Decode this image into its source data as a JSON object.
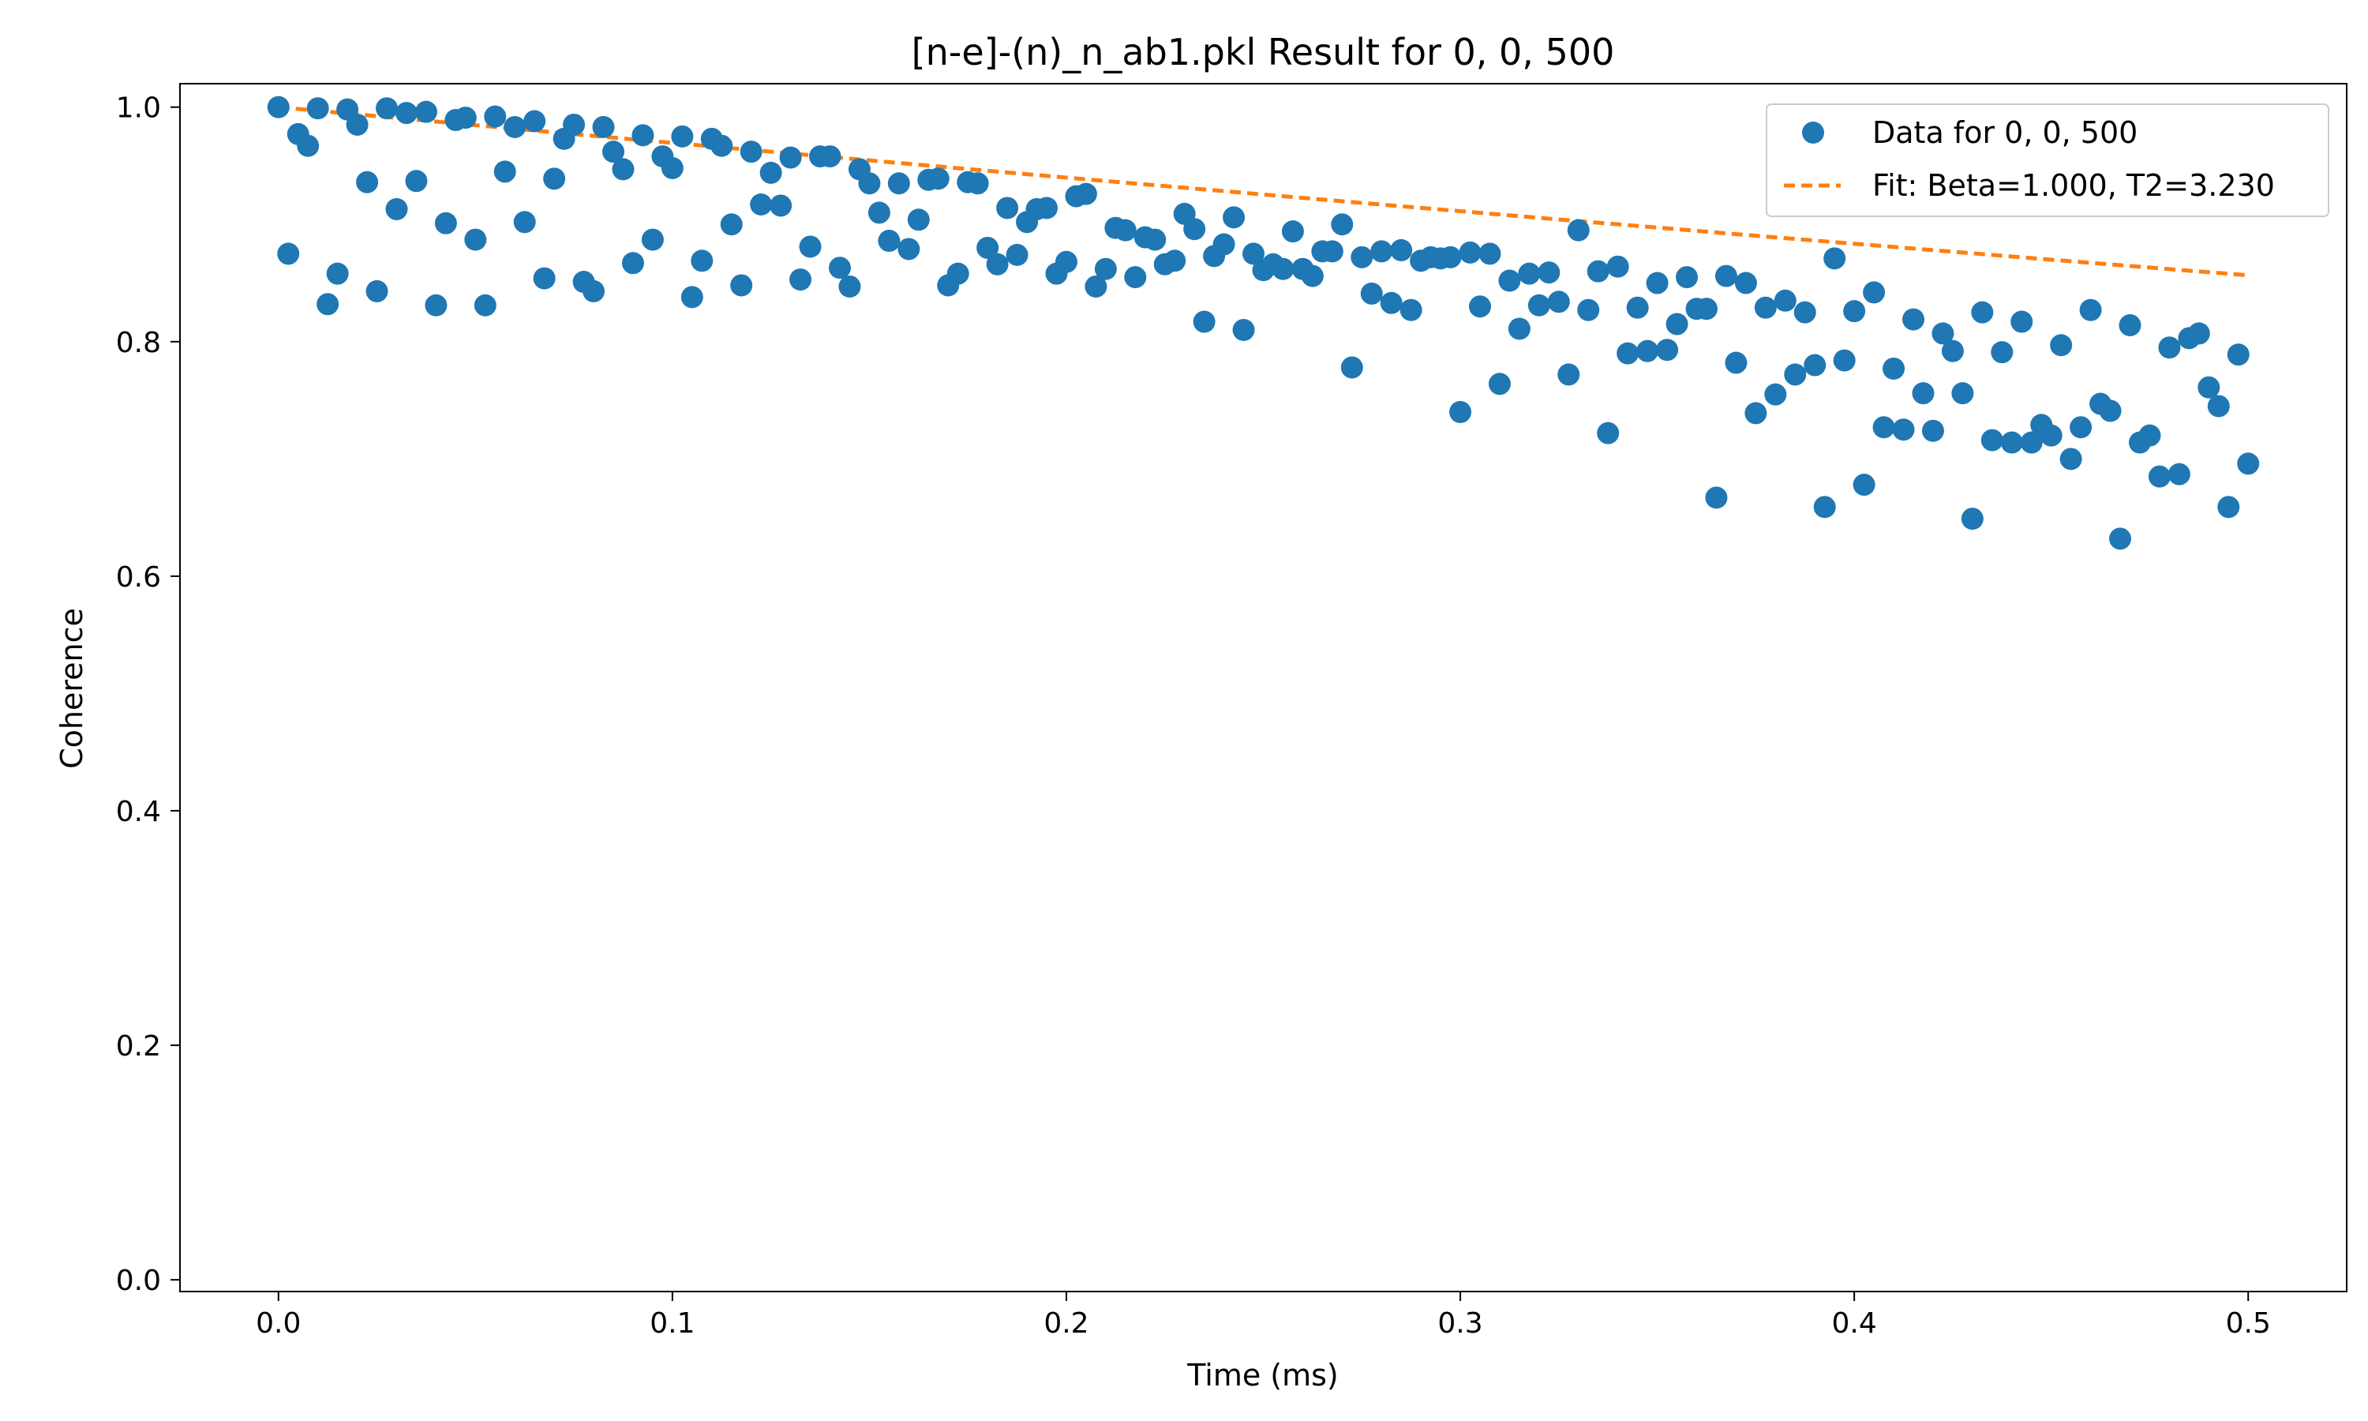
{
  "chart_data": {
    "type": "scatter",
    "title": "[n-e]-(n)_n_ab1.pkl Result for 0, 0, 500",
    "xlabel": "Time (ms)",
    "ylabel": "Coherence",
    "xlim": [
      -0.025,
      0.525
    ],
    "ylim": [
      -0.01,
      1.02
    ],
    "xticks": [
      0.0,
      0.1,
      0.2,
      0.3,
      0.4,
      0.5
    ],
    "xtick_labels": [
      "0.0",
      "0.1",
      "0.2",
      "0.3",
      "0.4",
      "0.5"
    ],
    "yticks": [
      0.0,
      0.2,
      0.4,
      0.6,
      0.8,
      1.0
    ],
    "ytick_labels": [
      "0.0",
      "0.2",
      "0.4",
      "0.6",
      "0.8",
      "1.0"
    ],
    "grid": false,
    "legend_position": "upper right",
    "series": [
      {
        "name": "Data for 0, 0, 500",
        "kind": "scatter",
        "color": "#1f77b4",
        "points": [
          [
            0.0,
            1.0
          ],
          [
            0.0025,
            0.875
          ],
          [
            0.005,
            0.977
          ],
          [
            0.0075,
            0.967
          ],
          [
            0.01,
            0.999
          ],
          [
            0.0125,
            0.832
          ],
          [
            0.015,
            0.858
          ],
          [
            0.0175,
            0.998
          ],
          [
            0.02,
            0.985
          ],
          [
            0.0225,
            0.936
          ],
          [
            0.025,
            0.843
          ],
          [
            0.0275,
            0.999
          ],
          [
            0.03,
            0.913
          ],
          [
            0.0325,
            0.995
          ],
          [
            0.035,
            0.937
          ],
          [
            0.0375,
            0.996
          ],
          [
            0.04,
            0.831
          ],
          [
            0.0425,
            0.901
          ],
          [
            0.045,
            0.989
          ],
          [
            0.0475,
            0.991
          ],
          [
            0.05,
            0.887
          ],
          [
            0.0525,
            0.831
          ],
          [
            0.055,
            0.992
          ],
          [
            0.0575,
            0.945
          ],
          [
            0.06,
            0.983
          ],
          [
            0.0625,
            0.902
          ],
          [
            0.065,
            0.988
          ],
          [
            0.0675,
            0.854
          ],
          [
            0.07,
            0.939
          ],
          [
            0.0725,
            0.973
          ],
          [
            0.075,
            0.985
          ],
          [
            0.0775,
            0.851
          ],
          [
            0.08,
            0.843
          ],
          [
            0.0825,
            0.983
          ],
          [
            0.085,
            0.962
          ],
          [
            0.0875,
            0.947
          ],
          [
            0.09,
            0.867
          ],
          [
            0.0925,
            0.976
          ],
          [
            0.095,
            0.887
          ],
          [
            0.0975,
            0.958
          ],
          [
            0.1,
            0.948
          ],
          [
            0.1025,
            0.975
          ],
          [
            0.105,
            0.838
          ],
          [
            0.1075,
            0.869
          ],
          [
            0.11,
            0.973
          ],
          [
            0.1125,
            0.967
          ],
          [
            0.115,
            0.9
          ],
          [
            0.1175,
            0.848
          ],
          [
            0.12,
            0.962
          ],
          [
            0.1225,
            0.917
          ],
          [
            0.125,
            0.944
          ],
          [
            0.1275,
            0.916
          ],
          [
            0.13,
            0.957
          ],
          [
            0.1325,
            0.853
          ],
          [
            0.135,
            0.881
          ],
          [
            0.1375,
            0.958
          ],
          [
            0.14,
            0.958
          ],
          [
            0.1425,
            0.863
          ],
          [
            0.145,
            0.847
          ],
          [
            0.1475,
            0.947
          ],
          [
            0.15,
            0.935
          ],
          [
            0.1525,
            0.91
          ],
          [
            0.155,
            0.886
          ],
          [
            0.1575,
            0.935
          ],
          [
            0.16,
            0.879
          ],
          [
            0.1625,
            0.904
          ],
          [
            0.165,
            0.938
          ],
          [
            0.1675,
            0.939
          ],
          [
            0.17,
            0.848
          ],
          [
            0.1725,
            0.858
          ],
          [
            0.175,
            0.936
          ],
          [
            0.1775,
            0.935
          ],
          [
            0.18,
            0.88
          ],
          [
            0.1825,
            0.866
          ],
          [
            0.185,
            0.914
          ],
          [
            0.1875,
            0.874
          ],
          [
            0.19,
            0.902
          ],
          [
            0.1925,
            0.913
          ],
          [
            0.195,
            0.914
          ],
          [
            0.1975,
            0.858
          ],
          [
            0.2,
            0.868
          ],
          [
            0.2025,
            0.924
          ],
          [
            0.205,
            0.926
          ],
          [
            0.2075,
            0.847
          ],
          [
            0.21,
            0.862
          ],
          [
            0.2125,
            0.897
          ],
          [
            0.215,
            0.895
          ],
          [
            0.2175,
            0.855
          ],
          [
            0.22,
            0.889
          ],
          [
            0.2225,
            0.887
          ],
          [
            0.225,
            0.866
          ],
          [
            0.2275,
            0.869
          ],
          [
            0.23,
            0.909
          ],
          [
            0.2325,
            0.896
          ],
          [
            0.235,
            0.817
          ],
          [
            0.2375,
            0.873
          ],
          [
            0.24,
            0.883
          ],
          [
            0.2425,
            0.906
          ],
          [
            0.245,
            0.81
          ],
          [
            0.2475,
            0.875
          ],
          [
            0.25,
            0.861
          ],
          [
            0.2525,
            0.866
          ],
          [
            0.255,
            0.862
          ],
          [
            0.2575,
            0.894
          ],
          [
            0.26,
            0.862
          ],
          [
            0.2625,
            0.856
          ],
          [
            0.265,
            0.877
          ],
          [
            0.2675,
            0.877
          ],
          [
            0.27,
            0.9
          ],
          [
            0.2725,
            0.778
          ],
          [
            0.275,
            0.872
          ],
          [
            0.2775,
            0.841
          ],
          [
            0.28,
            0.877
          ],
          [
            0.2825,
            0.833
          ],
          [
            0.285,
            0.878
          ],
          [
            0.2875,
            0.827
          ],
          [
            0.29,
            0.869
          ],
          [
            0.2925,
            0.872
          ],
          [
            0.295,
            0.871
          ],
          [
            0.2975,
            0.872
          ],
          [
            0.3,
            0.74
          ],
          [
            0.3025,
            0.876
          ],
          [
            0.305,
            0.83
          ],
          [
            0.3075,
            0.875
          ],
          [
            0.31,
            0.764
          ],
          [
            0.3125,
            0.852
          ],
          [
            0.315,
            0.811
          ],
          [
            0.3175,
            0.858
          ],
          [
            0.32,
            0.831
          ],
          [
            0.3225,
            0.859
          ],
          [
            0.325,
            0.834
          ],
          [
            0.3275,
            0.772
          ],
          [
            0.33,
            0.895
          ],
          [
            0.3325,
            0.827
          ],
          [
            0.335,
            0.86
          ],
          [
            0.3375,
            0.722
          ],
          [
            0.34,
            0.864
          ],
          [
            0.3425,
            0.79
          ],
          [
            0.345,
            0.829
          ],
          [
            0.3475,
            0.792
          ],
          [
            0.35,
            0.85
          ],
          [
            0.3525,
            0.793
          ],
          [
            0.355,
            0.815
          ],
          [
            0.3575,
            0.855
          ],
          [
            0.36,
            0.828
          ],
          [
            0.3625,
            0.828
          ],
          [
            0.365,
            0.667
          ],
          [
            0.3675,
            0.856
          ],
          [
            0.37,
            0.782
          ],
          [
            0.3725,
            0.85
          ],
          [
            0.375,
            0.739
          ],
          [
            0.3775,
            0.829
          ],
          [
            0.38,
            0.755
          ],
          [
            0.3825,
            0.835
          ],
          [
            0.385,
            0.772
          ],
          [
            0.3875,
            0.825
          ],
          [
            0.39,
            0.78
          ],
          [
            0.3925,
            0.659
          ],
          [
            0.395,
            0.871
          ],
          [
            0.3975,
            0.784
          ],
          [
            0.4,
            0.826
          ],
          [
            0.4025,
            0.678
          ],
          [
            0.405,
            0.842
          ],
          [
            0.4075,
            0.727
          ],
          [
            0.41,
            0.777
          ],
          [
            0.4125,
            0.725
          ],
          [
            0.415,
            0.819
          ],
          [
            0.4175,
            0.756
          ],
          [
            0.42,
            0.724
          ],
          [
            0.4225,
            0.807
          ],
          [
            0.425,
            0.792
          ],
          [
            0.4275,
            0.756
          ],
          [
            0.43,
            0.649
          ],
          [
            0.4325,
            0.825
          ],
          [
            0.435,
            0.716
          ],
          [
            0.4375,
            0.791
          ],
          [
            0.44,
            0.714
          ],
          [
            0.4425,
            0.817
          ],
          [
            0.445,
            0.714
          ],
          [
            0.4475,
            0.729
          ],
          [
            0.45,
            0.72
          ],
          [
            0.4525,
            0.797
          ],
          [
            0.455,
            0.7
          ],
          [
            0.4575,
            0.727
          ],
          [
            0.46,
            0.827
          ],
          [
            0.4625,
            0.747
          ],
          [
            0.465,
            0.741
          ],
          [
            0.4675,
            0.632
          ],
          [
            0.47,
            0.814
          ],
          [
            0.4725,
            0.714
          ],
          [
            0.475,
            0.72
          ],
          [
            0.4775,
            0.685
          ],
          [
            0.48,
            0.795
          ],
          [
            0.4825,
            0.687
          ],
          [
            0.485,
            0.803
          ],
          [
            0.4875,
            0.807
          ],
          [
            0.49,
            0.761
          ],
          [
            0.4925,
            0.745
          ],
          [
            0.495,
            0.659
          ],
          [
            0.4975,
            0.789
          ],
          [
            0.5,
            0.696
          ]
        ]
      },
      {
        "name": "Fit: Beta=1.000, T2=3.230",
        "kind": "line",
        "style": "dashed",
        "color": "#ff7f0e",
        "points": [
          [
            0.0,
            1.0
          ],
          [
            0.025,
            0.9923
          ],
          [
            0.05,
            0.9846
          ],
          [
            0.075,
            0.977
          ],
          [
            0.1,
            0.9695
          ],
          [
            0.125,
            0.962
          ],
          [
            0.15,
            0.9546
          ],
          [
            0.175,
            0.9472
          ],
          [
            0.2,
            0.9399
          ],
          [
            0.225,
            0.9327
          ],
          [
            0.25,
            0.9255
          ],
          [
            0.275,
            0.9183
          ],
          [
            0.3,
            0.9113
          ],
          [
            0.325,
            0.9042
          ],
          [
            0.35,
            0.8973
          ],
          [
            0.375,
            0.8903
          ],
          [
            0.4,
            0.8835
          ],
          [
            0.425,
            0.8767
          ],
          [
            0.45,
            0.8699
          ],
          [
            0.475,
            0.8632
          ],
          [
            0.5,
            0.8566
          ]
        ]
      }
    ]
  }
}
